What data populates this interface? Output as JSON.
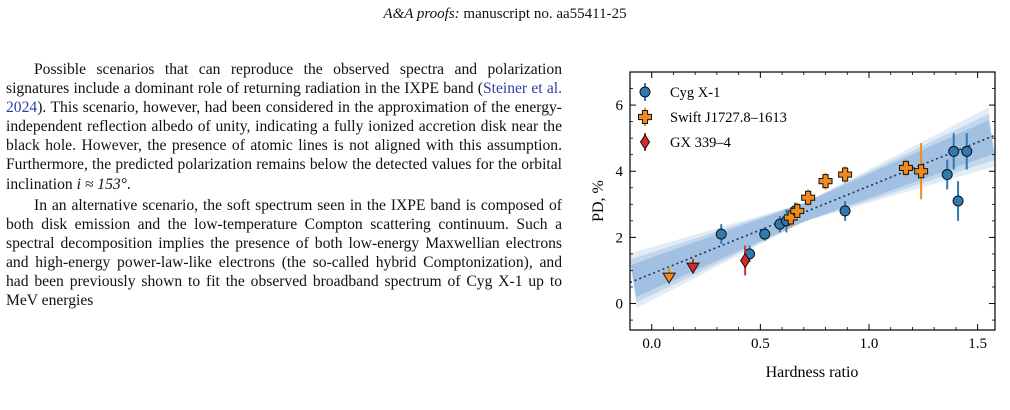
{
  "header": {
    "journal": "A&A proofs:",
    "manuscript": "manuscript no. aa55411-25"
  },
  "paragraph1": {
    "before_link": "Possible scenarios that can reproduce the observed spectra and polarization signatures include a dominant role of returning radiation in the IXPE band (",
    "link": "Steiner et al. 2024",
    "after_link": "). This scenario, however, had been considered in the approximation of the energy-independent reflection albedo of unity, indicating a fully ionized accretion disk near the black hole. However, the presence of atomic lines is not aligned with this assumption. Furthermore, the predicted polarization remains below the detected values for the orbital inclination ",
    "math": "i ≈ 153°",
    "end": "."
  },
  "paragraph2": {
    "text": "In an alternative scenario, the soft spectrum seen in the IXPE band is composed of both disk emission and the low-temperature Compton scattering continuum. Such a spectral decomposition implies the presence of both low-energy Maxwellian electrons and high-energy power-law-like electrons (the so-called hybrid Comptonization), and had been previously shown to fit the observed broadband spectrum of Cyg X-1 up to MeV energies"
  },
  "chart_data": {
    "type": "scatter",
    "xlabel": "Hardness ratio",
    "ylabel": "PD, %",
    "xlim": [
      -0.1,
      1.58
    ],
    "ylim": [
      -0.8,
      7.0
    ],
    "xticks": [
      0.0,
      0.5,
      1.0,
      1.5
    ],
    "xtick_labels": [
      "0.0",
      "0.5",
      "1.0",
      "1.5"
    ],
    "yticks": [
      0,
      2,
      4,
      6
    ],
    "ytick_labels": [
      "0",
      "2",
      "4",
      "6"
    ],
    "legend_position": "top-left",
    "fit": {
      "intercept": 0.9,
      "slope": 2.65
    },
    "colors": {
      "cyg": "#2f7ab0",
      "swift": "#f08a1c",
      "gx": "#d62a2a",
      "band": "#4a86c5"
    },
    "series": [
      {
        "name": "Cyg X-1",
        "marker": "circle",
        "points": [
          {
            "x": 0.32,
            "y": 2.1,
            "err": 0.3
          },
          {
            "x": 0.45,
            "y": 1.5,
            "err": 0.25
          },
          {
            "x": 0.52,
            "y": 2.1,
            "err": 0.2
          },
          {
            "x": 0.59,
            "y": 2.4,
            "err": 0.25
          },
          {
            "x": 0.62,
            "y": 2.5,
            "err": 0.35
          },
          {
            "x": 0.66,
            "y": 2.8,
            "err": 0.25
          },
          {
            "x": 0.89,
            "y": 2.8,
            "err": 0.3
          },
          {
            "x": 1.36,
            "y": 3.9,
            "err": 0.45
          },
          {
            "x": 1.39,
            "y": 4.6,
            "err": 0.55
          },
          {
            "x": 1.41,
            "y": 3.1,
            "err": 0.6
          },
          {
            "x": 1.45,
            "y": 4.6,
            "err": 0.55
          }
        ]
      },
      {
        "name": "Swift J1727.8–1613",
        "marker": "plus",
        "points": [
          {
            "x": 0.64,
            "y": 2.6,
            "err": 0.3
          },
          {
            "x": 0.67,
            "y": 2.8,
            "err": 0.25
          },
          {
            "x": 0.72,
            "y": 3.2,
            "err": 0.25
          },
          {
            "x": 0.8,
            "y": 3.7,
            "err": 0.25
          },
          {
            "x": 0.89,
            "y": 3.9,
            "err": 0.25
          },
          {
            "x": 1.17,
            "y": 4.1,
            "err": 0.25
          },
          {
            "x": 1.24,
            "y": 4.0,
            "err": 0.85
          }
        ],
        "upper_limits": [
          {
            "x": 0.08,
            "y": 0.8
          }
        ]
      },
      {
        "name": "GX 339–4",
        "marker": "diamond",
        "points": [
          {
            "x": 0.43,
            "y": 1.3,
            "err": 0.45
          }
        ],
        "upper_limits": [
          {
            "x": 0.19,
            "y": 1.1
          }
        ]
      }
    ]
  }
}
